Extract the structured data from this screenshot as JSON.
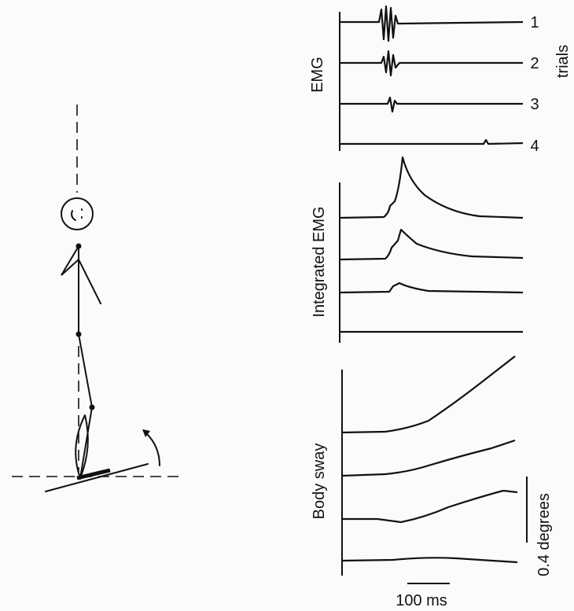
{
  "panels": [
    {
      "label": "EMG"
    },
    {
      "label": "Integrated EMG"
    },
    {
      "label": "Body sway"
    }
  ],
  "trials": {
    "title": "trials",
    "labels": [
      "1",
      "2",
      "3",
      "4"
    ]
  },
  "scale_bars": {
    "time": "100 ms",
    "angle": "0.4 degrees"
  }
}
